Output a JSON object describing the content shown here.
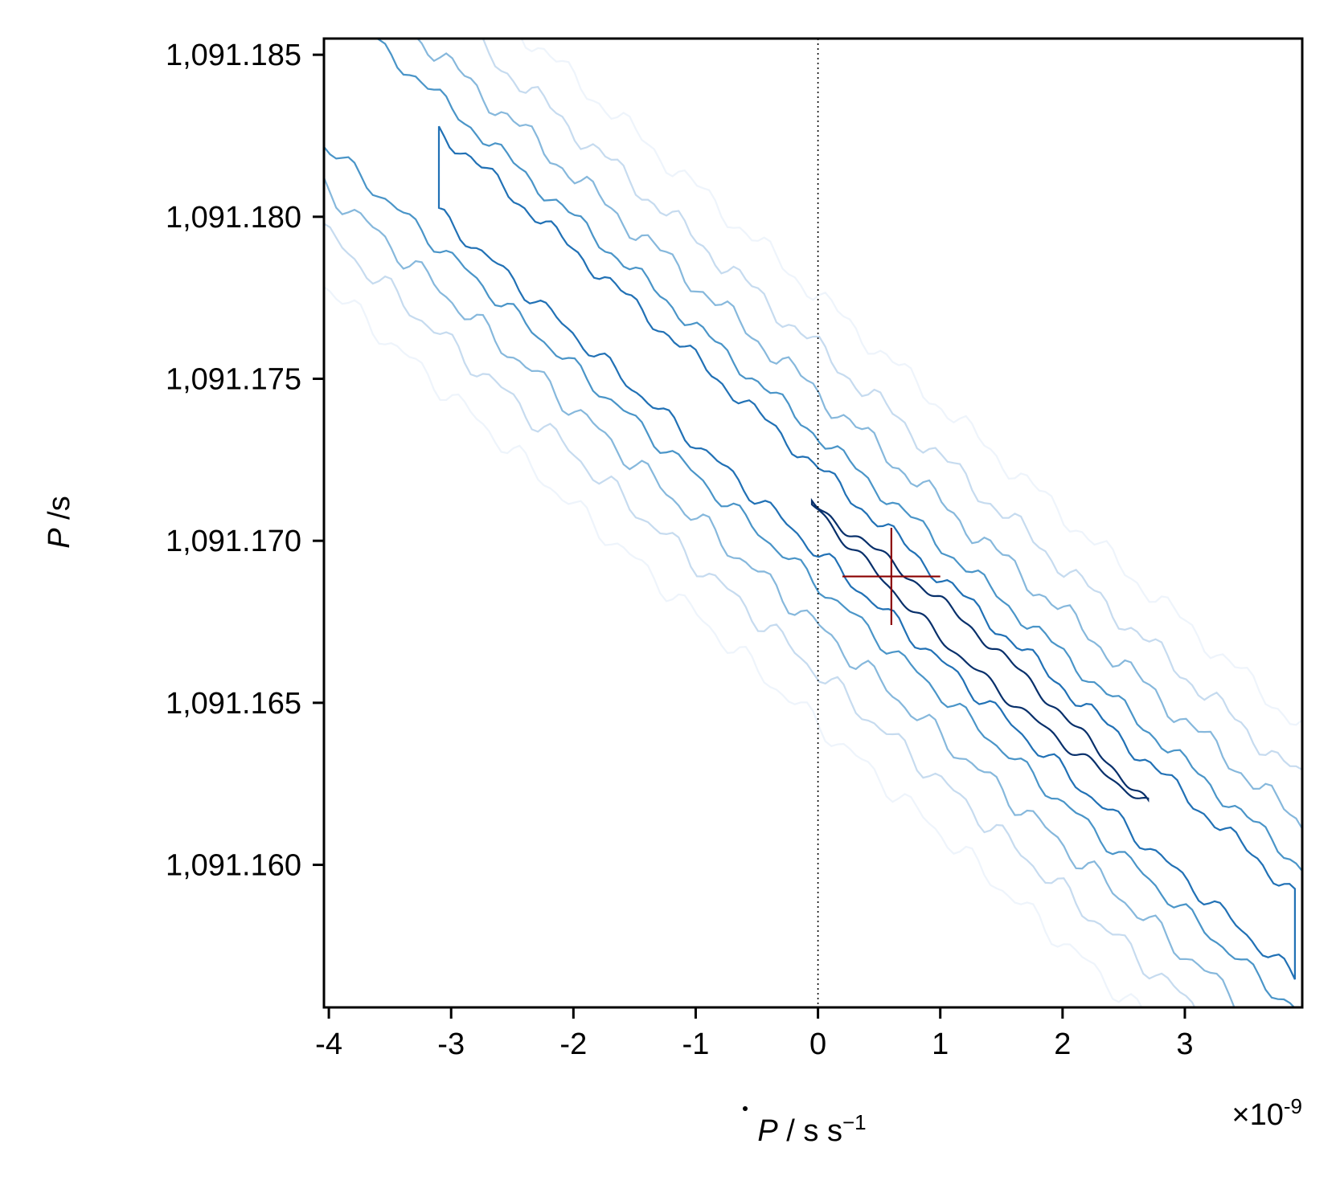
{
  "chart_data": {
    "type": "contour",
    "xlabel_symbol": "P",
    "xlabel_rest": " / s s",
    "xlabel_exponent": "−1",
    "ylabel_symbol": "P",
    "ylabel_rest": " /s",
    "x_offset_text": "×10",
    "x_offset_exponent": "-9",
    "x_scale": 1e-09,
    "xlim": [
      -4.04,
      3.96
    ],
    "ylim": [
      1091.1556,
      1091.1855
    ],
    "x_ticks": [
      -4,
      -3,
      -2,
      -1,
      0,
      1,
      2,
      3
    ],
    "x_tick_labels": [
      "-4",
      "-3",
      "-2",
      "-1",
      "0",
      "1",
      "2",
      "3"
    ],
    "y_ticks": [
      1091.16,
      1091.165,
      1091.17,
      1091.175,
      1091.18,
      1091.185
    ],
    "y_tick_labels": [
      "1,091.160",
      "1,091.165",
      "1,091.170",
      "1,091.175",
      "1,091.180",
      "1,091.185"
    ],
    "reference_line": {
      "x": 0,
      "style": "dotted"
    },
    "best_fit": {
      "x": 0.6,
      "y": 1091.1689,
      "x_err": 0.4,
      "y_err": 0.0015,
      "color": "#8b0000"
    },
    "ridge": {
      "slope": -0.003365,
      "intercept": 1091.17095
    },
    "contour_levels": [
      {
        "halfwidth": 0.0066,
        "x_range": [
          -4.04,
          3.96
        ],
        "color": "#eef4fb",
        "noise": 0.0004
      },
      {
        "halfwidth": 0.005,
        "x_range": [
          -4.04,
          3.96
        ],
        "color": "#c6dbef",
        "noise": 0.0004
      },
      {
        "halfwidth": 0.0036,
        "x_range": [
          -4.04,
          3.96
        ],
        "color": "#86b8dc",
        "noise": 0.0004
      },
      {
        "halfwidth": 0.0023,
        "x_range": [
          -4.04,
          3.96
        ],
        "color": "#4a95c8",
        "noise": 0.0003
      },
      {
        "halfwidth": 0.0013,
        "x_range": [
          -3.1,
          3.9
        ],
        "color": "#2171b5",
        "noise": 0.0003
      },
      {
        "halfwidth": 0.0006,
        "x_range": [
          -0.05,
          2.7
        ],
        "color": "#08306b",
        "noise": 0.0002
      }
    ]
  }
}
